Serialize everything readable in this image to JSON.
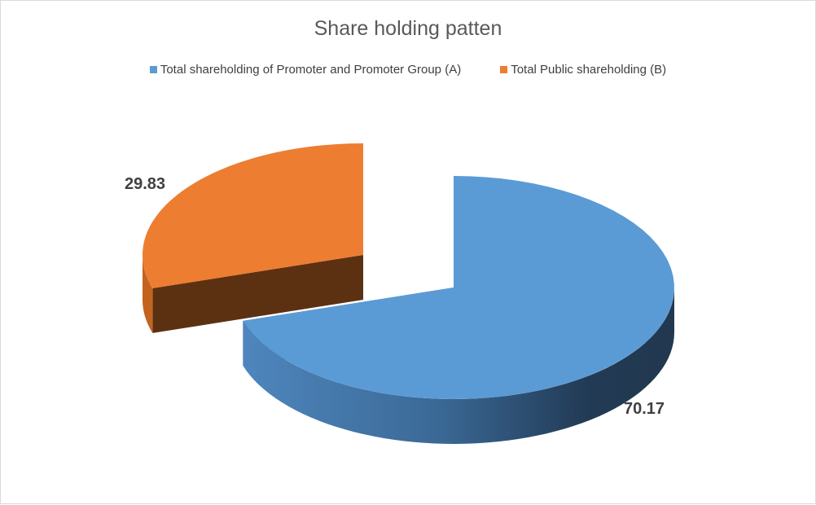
{
  "chart_data": {
    "type": "pie",
    "title": "Share holding patten",
    "legend_position": "top",
    "series": [
      {
        "name": "Total shareholding of Promoter and Promoter Group (A)",
        "value": 70.17,
        "label": "70.17",
        "color": "#5b9bd5",
        "exploded": false
      },
      {
        "name": "Total Public shareholding (B)",
        "value": 29.83,
        "label": "29.83",
        "color": "#ed7d31",
        "exploded": true
      }
    ],
    "style": "3d"
  }
}
